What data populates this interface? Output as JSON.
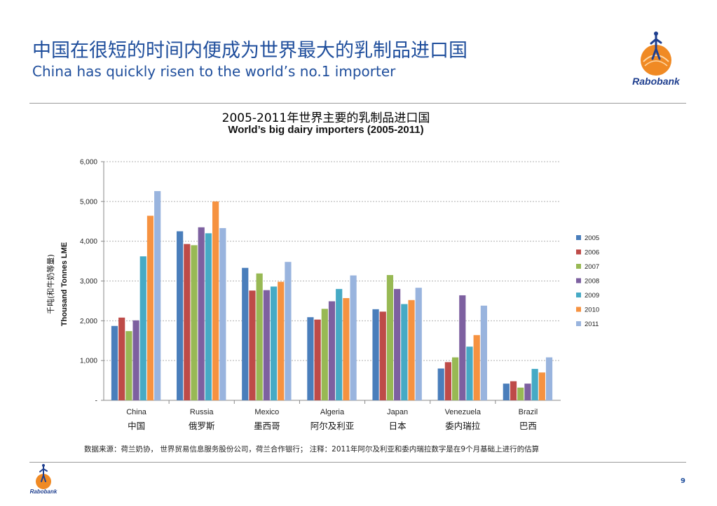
{
  "header": {
    "title_cn": "中国在很短的时间内便成为世界最大的乳制品进口国",
    "title_en": "China has quickly risen to the world’s no.1 importer",
    "logo_text": "Rabobank"
  },
  "chart_data": {
    "type": "bar",
    "title": "2005-2011年世界主要的乳制品进口国",
    "subtitle": "World’s big dairy importers (2005-2011)",
    "ylabel": "Thousand Tonnes LME",
    "ylabel_cn": "千吨(和牛奶等量)",
    "ylim": [
      0,
      6000
    ],
    "yticks": [
      "-",
      "1,000",
      "2,000",
      "3,000",
      "4,000",
      "5,000",
      "6,000"
    ],
    "grid": true,
    "legend_position": "right",
    "categories": [
      "China",
      "Russia",
      "Mexico",
      "Algeria",
      "Japan",
      "Venezuela",
      "Brazil"
    ],
    "categories_cn": [
      "中国",
      "俄罗斯",
      "墨西哥",
      "阿尔及利亚",
      "日本",
      "委内瑞拉",
      "巴西"
    ],
    "series": [
      {
        "name": "2005",
        "color": "#4a7ebb",
        "values": [
          1870,
          4250,
          3330,
          2090,
          2290,
          800,
          420
        ]
      },
      {
        "name": "2006",
        "color": "#be4b48",
        "values": [
          2080,
          3930,
          2760,
          2030,
          2230,
          960,
          480
        ]
      },
      {
        "name": "2007",
        "color": "#98b954",
        "values": [
          1740,
          3900,
          3190,
          2300,
          3150,
          1080,
          320
        ]
      },
      {
        "name": "2008",
        "color": "#7d60a0",
        "values": [
          2010,
          4350,
          2770,
          2490,
          2800,
          2640,
          420
        ]
      },
      {
        "name": "2009",
        "color": "#46aac5",
        "values": [
          3620,
          4200,
          2860,
          2800,
          2420,
          1350,
          790
        ]
      },
      {
        "name": "2010",
        "color": "#f69240",
        "values": [
          4640,
          5000,
          2980,
          2570,
          2520,
          1640,
          700
        ]
      },
      {
        "name": "2011",
        "color": "#99b4de",
        "values": [
          5260,
          4330,
          3480,
          3140,
          2830,
          2380,
          1080
        ]
      }
    ]
  },
  "footer": {
    "note": "数据来源：荷兰奶协， 世界贸易信息服务股份公司，荷兰合作银行； 注释：2011年阿尔及利亚和委内瑞拉数字是在9个月基础上进行的估算",
    "page_number": "9",
    "logo_text": "Rabobank"
  }
}
